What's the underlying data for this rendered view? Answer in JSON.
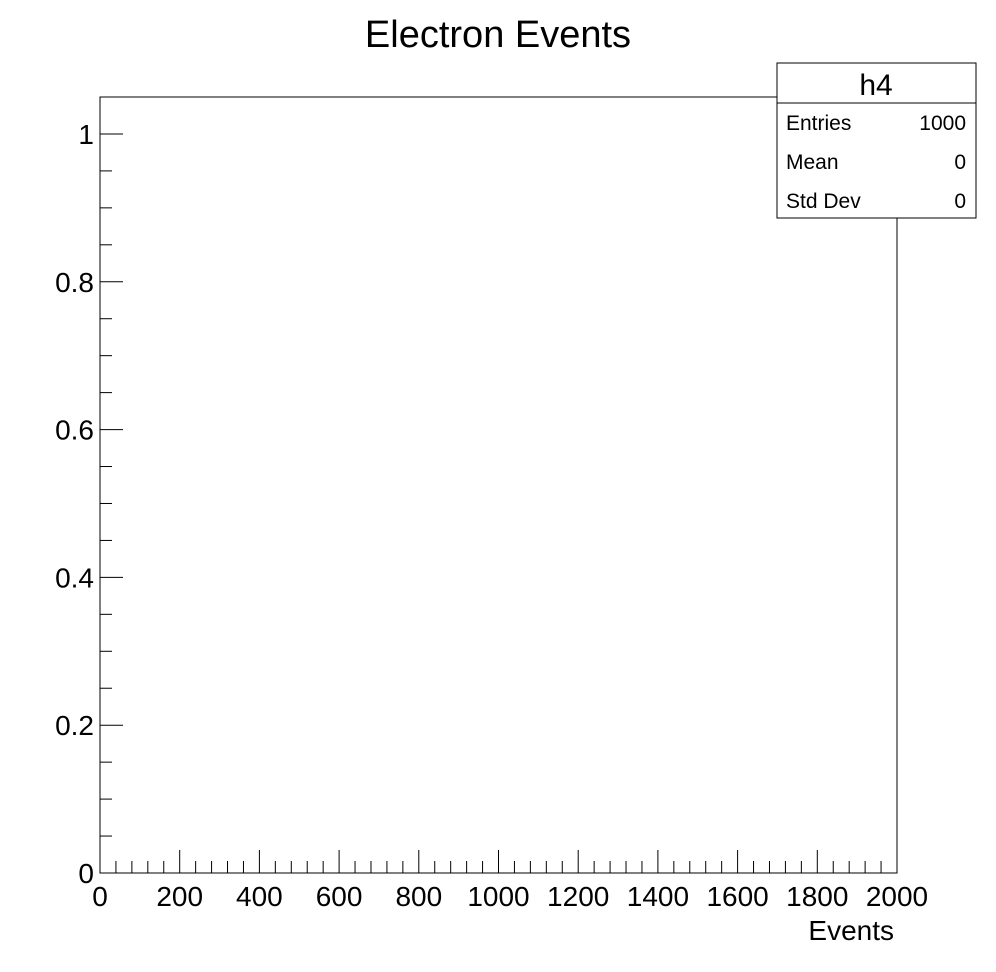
{
  "chart_data": {
    "type": "bar",
    "title": "Electron Events",
    "xlabel": "Events",
    "ylabel": "",
    "xlim": [
      0,
      2000
    ],
    "ylim": [
      0,
      1.05
    ],
    "x_ticks": [
      "0",
      "200",
      "400",
      "600",
      "800",
      "1000",
      "1200",
      "1400",
      "1600",
      "1800",
      "2000"
    ],
    "y_ticks": [
      "0",
      "0.2",
      "0.4",
      "0.6",
      "0.8",
      "1"
    ],
    "series": [],
    "grid": false,
    "stats_box": {
      "name": "h4",
      "rows": [
        {
          "label": "Entries",
          "value": "1000"
        },
        {
          "label": "Mean",
          "value": "0"
        },
        {
          "label": "Std Dev",
          "value": "0"
        }
      ],
      "placement": "top-right"
    }
  }
}
